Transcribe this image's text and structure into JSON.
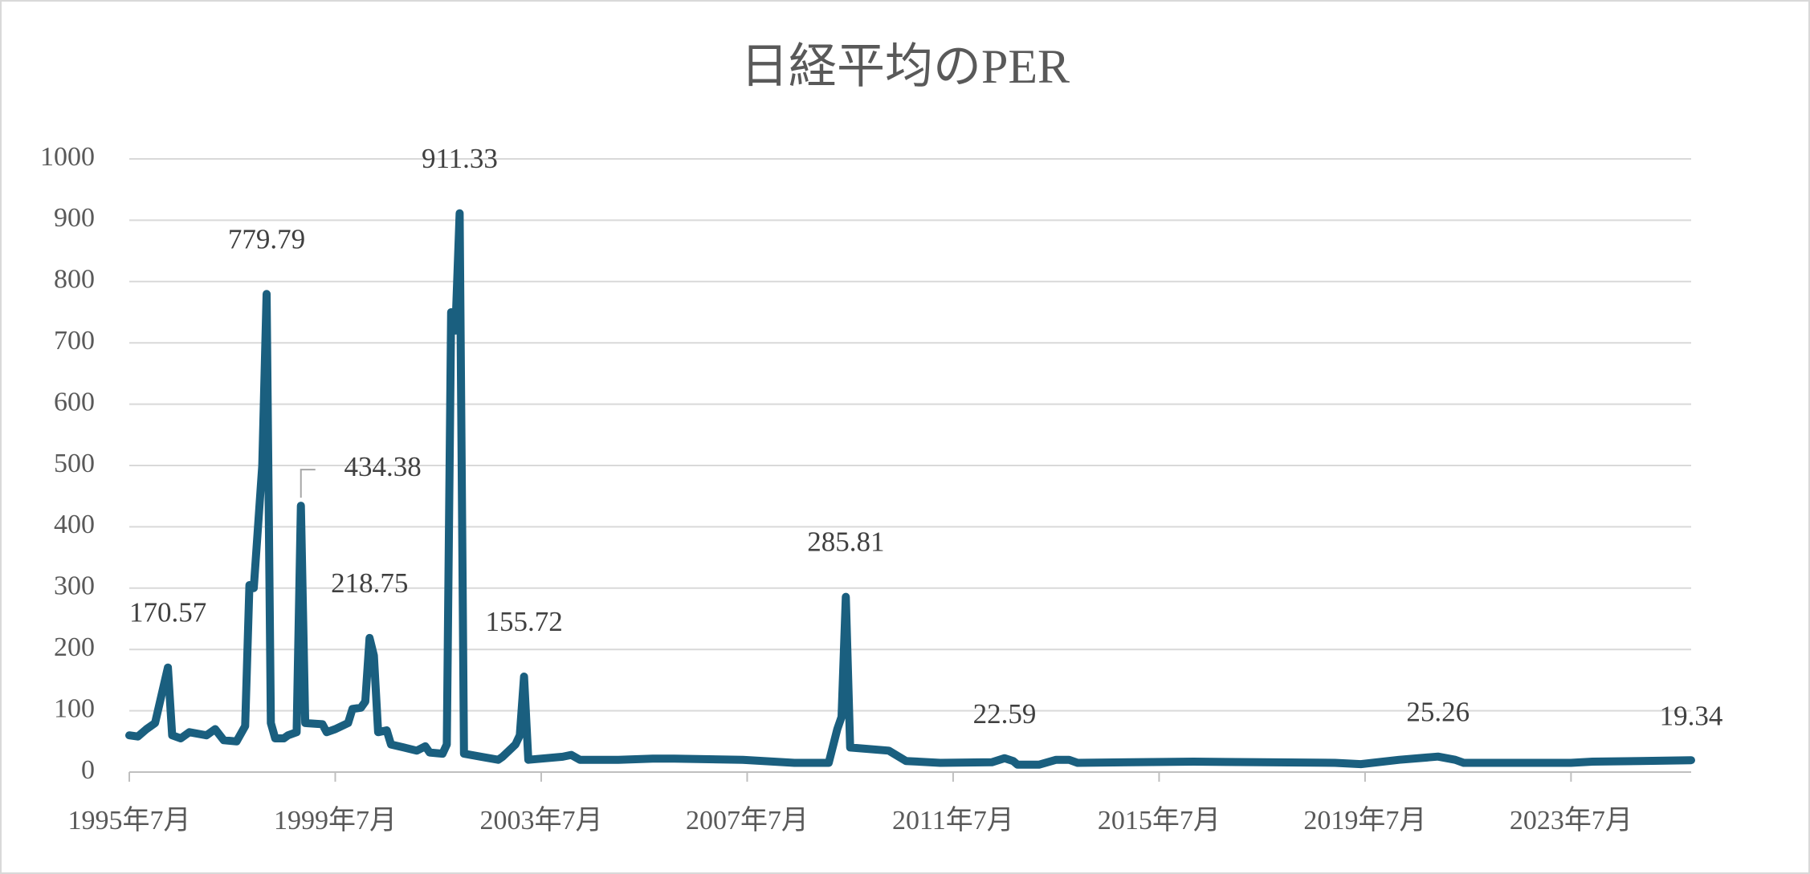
{
  "chart_data": {
    "type": "line",
    "title": "日経平均のPER",
    "x": [
      "1995-07",
      "1995-09",
      "1995-11",
      "1996-01",
      "1996-03",
      "1996-04",
      "1996-05",
      "1996-07",
      "1996-09",
      "1997-01",
      "1997-03",
      "1997-05",
      "1997-08",
      "1997-10",
      "1997-11",
      "1997-12",
      "1998-02",
      "1998-03",
      "1998-04",
      "1998-05",
      "1998-07",
      "1998-08",
      "1998-10",
      "1998-11",
      "1998-12",
      "1999-04",
      "1999-05",
      "1999-07",
      "1999-10",
      "1999-11",
      "2000-01",
      "2000-02",
      "2000-03",
      "2000-04",
      "2000-05",
      "2000-07",
      "2000-08",
      "2000-11",
      "2001-02",
      "2001-04",
      "2001-05",
      "2001-08",
      "2001-09",
      "2001-10",
      "2001-11",
      "2001-12",
      "2002-01",
      "2002-05",
      "2002-09",
      "2002-10",
      "2003-01",
      "2003-02",
      "2003-03",
      "2003-04",
      "2003-12",
      "2004-02",
      "2004-04",
      "2005-01",
      "2005-09",
      "2006-02",
      "2007-06",
      "2008-06",
      "2009-02",
      "2009-04",
      "2009-05",
      "2009-06",
      "2009-07",
      "2010-04",
      "2010-08",
      "2011-04",
      "2012-04",
      "2012-07",
      "2012-09",
      "2012-10",
      "2013-03",
      "2013-07",
      "2013-10",
      "2013-12",
      "2016-03",
      "2018-12",
      "2019-06",
      "2020-03",
      "2020-12",
      "2021-04",
      "2021-06",
      "2022-02",
      "2023-07",
      "2023-12",
      "2024-11",
      "2025-11"
    ],
    "series": [
      {
        "name": "PER",
        "color": "#1a5f7f",
        "values": [
          60,
          58,
          70,
          80,
          140,
          170.57,
          60,
          55,
          65,
          60,
          70,
          52,
          50,
          75,
          305,
          300,
          500,
          779.79,
          80,
          55,
          55,
          60,
          65,
          434.38,
          80,
          78,
          65,
          70,
          80,
          103,
          105,
          115,
          218.75,
          190,
          65,
          68,
          45,
          40,
          35,
          42,
          32,
          30,
          45,
          750,
          720,
          911.33,
          30,
          25,
          20,
          25,
          45,
          60,
          155.72,
          20,
          25,
          28,
          20,
          20,
          22,
          22,
          20,
          15,
          15,
          70,
          90,
          285.81,
          40,
          35,
          18,
          15,
          16,
          22.59,
          18,
          12,
          12,
          20,
          20,
          15,
          17,
          15,
          13,
          20,
          25.26,
          20,
          15,
          15,
          15,
          17,
          18,
          19.34
        ],
        "value_labels": [
          null,
          null,
          null,
          null,
          null,
          "170.57",
          null,
          null,
          null,
          null,
          null,
          null,
          null,
          null,
          null,
          null,
          null,
          "779.79",
          null,
          null,
          null,
          null,
          null,
          "434.38",
          null,
          null,
          null,
          null,
          null,
          null,
          null,
          null,
          "218.75",
          null,
          null,
          null,
          null,
          null,
          null,
          null,
          null,
          null,
          null,
          null,
          null,
          "911.33",
          null,
          null,
          null,
          null,
          null,
          null,
          "155.72",
          null,
          null,
          null,
          null,
          null,
          null,
          null,
          null,
          null,
          null,
          null,
          null,
          "285.81",
          null,
          null,
          null,
          null,
          null,
          "22.59",
          null,
          null,
          null,
          null,
          null,
          null,
          null,
          null,
          null,
          null,
          "25.26",
          null,
          null,
          null,
          null,
          null,
          null,
          "19.34"
        ]
      }
    ],
    "xlim": [
      "1995-07",
      "2025-11"
    ],
    "xticks": [
      {
        "value": "1995-07",
        "label": "1995年7月"
      },
      {
        "value": "1999-07",
        "label": "1999年7月"
      },
      {
        "value": "2003-07",
        "label": "2003年7月"
      },
      {
        "value": "2007-07",
        "label": "2007年7月"
      },
      {
        "value": "2011-07",
        "label": "2011年7月"
      },
      {
        "value": "2015-07",
        "label": "2015年7月"
      },
      {
        "value": "2019-07",
        "label": "2019年7月"
      },
      {
        "value": "2023-07",
        "label": "2023年7月"
      }
    ],
    "ylim": [
      0,
      1000
    ],
    "yticks": [
      0,
      100,
      200,
      300,
      400,
      500,
      600,
      700,
      800,
      900,
      1000
    ],
    "grid": true
  }
}
